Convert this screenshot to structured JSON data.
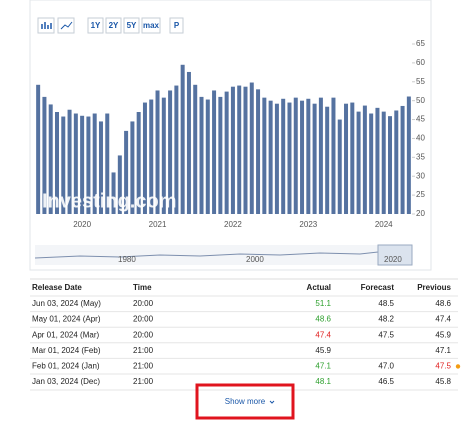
{
  "toolbar": {
    "buttons": [
      "1Y",
      "2Y",
      "5Y",
      "max",
      "P"
    ]
  },
  "chart_data": {
    "type": "bar",
    "color": "#5572a0",
    "categories": [
      null,
      null,
      null,
      null,
      null,
      null,
      null,
      "2020",
      null,
      null,
      null,
      null,
      null,
      null,
      null,
      null,
      null,
      null,
      null,
      "2021",
      null,
      null,
      null,
      null,
      null,
      null,
      null,
      null,
      null,
      null,
      null,
      "2022",
      null,
      null,
      null,
      null,
      null,
      null,
      null,
      null,
      null,
      null,
      null,
      "2023",
      null,
      null,
      null,
      null,
      null,
      null,
      null,
      null,
      null,
      null,
      null,
      "2024",
      null,
      null,
      null,
      null
    ],
    "values": [
      54.2,
      51,
      49,
      47,
      45.8,
      47.6,
      46.6,
      46,
      45.8,
      46.6,
      44.5,
      46.6,
      31,
      35.5,
      42,
      44.5,
      47,
      49.5,
      50.3,
      52.7,
      50.8,
      52.7,
      54,
      59.5,
      57.6,
      54.2,
      51,
      50.3,
      52.7,
      51,
      52.4,
      53.7,
      54,
      53.7,
      54.8,
      53,
      50.8,
      50,
      49.2,
      50.5,
      49.5,
      50.8,
      50,
      50.5,
      49.2,
      50.8,
      48.4,
      50.8,
      45,
      49.2,
      49.5,
      47.1,
      48.7,
      46.6,
      48.1,
      47.1,
      45.9,
      47.4,
      48.6,
      51.1
    ],
    "ylim": [
      20,
      65
    ],
    "yticks": [
      20,
      25,
      30,
      35,
      40,
      45,
      50,
      55,
      60,
      65
    ],
    "watermark": "Investing.com"
  },
  "navigator": {
    "labels": [
      "1980",
      "2000",
      "2020"
    ]
  },
  "table": {
    "header": [
      "Release Date",
      "Time",
      "Actual",
      "Forecast",
      "Previous"
    ],
    "rows": [
      [
        "Jun 03, 2024 (May)",
        "20:00",
        "51.1",
        "48.5",
        "48.6"
      ],
      [
        "May 01, 2024 (Apr)",
        "20:00",
        "48.6",
        "48.2",
        "47.4"
      ],
      [
        "Apr 01, 2024 (Mar)",
        "20:00",
        "47.4",
        "47.5",
        "45.9"
      ],
      [
        "Mar 01, 2024 (Feb)",
        "21:00",
        "45.9",
        "",
        "47.1"
      ],
      [
        "Feb 01, 2024 (Jan)",
        "21:00",
        "47.1",
        "47.0",
        "47.5"
      ],
      [
        "Jan 03, 2024 (Dec)",
        "21:00",
        "48.1",
        "46.5",
        "45.8"
      ]
    ]
  },
  "show_more": "Show more"
}
